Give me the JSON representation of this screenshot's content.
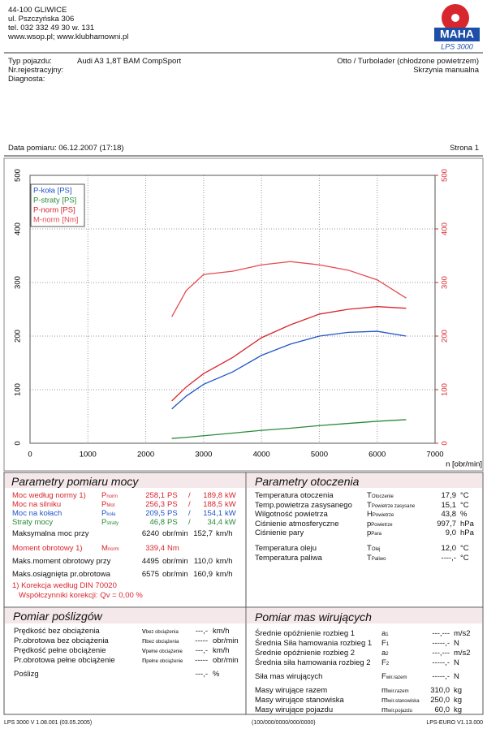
{
  "header": {
    "address": [
      "44-100 GLIWICE",
      "ul. Pszczyńska 306",
      "tel. 032 332 49 30 w. 131",
      "www.wsop.pl; www.klubhamowni.pl"
    ],
    "logo": "MAHA",
    "product": "LPS 3000"
  },
  "vehicle": {
    "labels": [
      "Typ pojazdu:",
      "Nr.rejestracyjny:",
      "Diagnosta:"
    ],
    "type": "Audi A3 1,8T BAM CompSport",
    "engine": "Otto / Turbolader (chłodzone powietrzem)",
    "gearbox": "Skrzynia manualna"
  },
  "measurement": {
    "date": "Data pomiaru: 06.12.2007 (17:18)",
    "page": "Strona 1"
  },
  "chart_data": {
    "type": "line",
    "xlabel": "n [obr/min]",
    "x": [
      2450,
      2700,
      3000,
      3500,
      4000,
      4500,
      5000,
      5500,
      6000,
      6500
    ],
    "xlim": [
      0,
      7000
    ],
    "xticks": [
      0,
      1000,
      2000,
      3000,
      4000,
      5000,
      6000,
      7000
    ],
    "ylim": [
      0,
      500
    ],
    "yticks": [
      0,
      100,
      200,
      300,
      400,
      500
    ],
    "y2lim": [
      0,
      500
    ],
    "y2ticks": [
      0,
      100,
      200,
      300,
      400,
      500
    ],
    "grid": true,
    "legend": "upper left",
    "series": [
      {
        "name": "P-koła [PS]",
        "color": "#2255c8",
        "values": [
          64,
          88,
          110,
          133,
          164,
          185,
          200,
          207,
          209,
          200
        ]
      },
      {
        "name": "P-straty [PS]",
        "color": "#2a8a3a",
        "values": [
          9,
          11,
          14,
          19,
          24,
          28,
          33,
          37,
          41,
          44
        ]
      },
      {
        "name": "P-norm [PS]",
        "color": "#d8262e",
        "values": [
          79,
          105,
          130,
          160,
          197,
          221,
          241,
          250,
          255,
          252
        ]
      },
      {
        "name": "M-norm [Nm]",
        "color": "#e8484e",
        "axis": "y2",
        "values": [
          236,
          285,
          315,
          321,
          333,
          339,
          333,
          323,
          305,
          271
        ]
      }
    ]
  },
  "power": {
    "title": "Parametry pomiaru mocy",
    "rows": [
      {
        "label": "Moc według normy 1)",
        "sym": "P",
        "sub": "norm",
        "value": "258,1",
        "unit": "PS",
        "sep": "/",
        "value2": "189,8",
        "unit2": "kW",
        "color": "#d8262e"
      },
      {
        "label": "Moc na silniku",
        "sym": "P",
        "sub": "Mot",
        "value": "256,3",
        "unit": "PS",
        "sep": "/",
        "value2": "188,5",
        "unit2": "kW",
        "color": "#d8262e"
      },
      {
        "label": "Moc na kołach",
        "sym": "P",
        "sub": "koła",
        "value": "209,5",
        "unit": "PS",
        "sep": "/",
        "value2": "154,1",
        "unit2": "kW",
        "color": "#2255c8"
      },
      {
        "label": "Straty mocy",
        "sym": "P",
        "sub": "straty",
        "value": "46,8",
        "unit": "PS",
        "sep": "/",
        "value2": "34,4",
        "unit2": "kW",
        "color": "#2a8a3a"
      },
      {
        "label": "Maksymalna moc przy",
        "value": "6240",
        "unit": "obr/min",
        "value2": "152,7",
        "unit2": "km/h",
        "color": "#111"
      },
      {
        "label": "Moment obrotowy 1)",
        "sym": "M",
        "sub": "norm",
        "value": "339,4",
        "unit": "Nm",
        "color": "#d8262e"
      },
      {
        "label": "Maks.moment obrotowy przy",
        "value": "4495",
        "unit": "obr/min",
        "value2": "110,0",
        "unit2": "km/h",
        "color": "#111"
      },
      {
        "label": "Maks.osiągnięta pr.obrotowa",
        "value": "6575",
        "unit": "obr/min",
        "value2": "160,9",
        "unit2": "km/h",
        "color": "#111"
      }
    ],
    "notes": [
      "1) Korekcja według DIN 70020",
      "Współczynniki korekcji: Qv = 0,00 %"
    ]
  },
  "ambient": {
    "title": "Parametry otoczenia",
    "rows": [
      {
        "label": "Temperatura otoczenia",
        "sym": "T",
        "sub": "Otoczenie",
        "value": "17,9",
        "unit": "°C"
      },
      {
        "label": "Temp.powietrza zasysanego",
        "sym": "T",
        "sub": "Powietrze zasysane",
        "value": "15,1",
        "unit": "°C"
      },
      {
        "label": "Wilgotność powietrza",
        "sym": "H",
        "sub": "Powietrze",
        "value": "43,8",
        "unit": "%"
      },
      {
        "label": "Ciśnienie atmosferyczne",
        "sym": "p",
        "sub": "Powietrze",
        "value": "997,7",
        "unit": "hPa"
      },
      {
        "label": "Ciśnienie pary",
        "sym": "p",
        "sub": "Para",
        "value": "9,0",
        "unit": "hPa"
      },
      {
        "label": "Temperatura oleju",
        "sym": "T",
        "sub": "Olej",
        "value": "12,0",
        "unit": "°C"
      },
      {
        "label": "Temperatura paliwa",
        "sym": "T",
        "sub": "Paliwo",
        "value": "----,-",
        "unit": "°C"
      }
    ]
  },
  "slip": {
    "title": "Pomiar poślizgów",
    "rows": [
      {
        "label": "Prędkość bez obciążenia",
        "sym": "v",
        "sub": "bez obciążenia",
        "value": "---,-",
        "unit": "km/h"
      },
      {
        "label": "Pr.obrotowa bez obciążenia",
        "sym": "n",
        "sub": "bez obciążenia",
        "value": "-----",
        "unit": "obr/min"
      },
      {
        "label": "Prędkość pełne obciążenie",
        "sym": "v",
        "sub": "pełne obciążenie",
        "value": "---,-",
        "unit": "km/h"
      },
      {
        "label": "Pr.obrotowa pełne obciążenie",
        "sym": "n",
        "sub": "pełne obciążenie",
        "value": "-----",
        "unit": "obr/min"
      },
      {
        "label": "Poślizg",
        "value": "---,-",
        "unit": "%"
      }
    ]
  },
  "masses": {
    "title": "Pomiar mas wirujących",
    "rows": [
      {
        "label": "Średnie opóźnienie rozbieg 1",
        "sym": "a",
        "sub": "1",
        "value": "---,---",
        "unit": "m/s2"
      },
      {
        "label": "Średnia Siła hamowania rozbieg 1",
        "sym": "F",
        "sub": "1",
        "value": "-----,-",
        "unit": "N"
      },
      {
        "label": "Średnie opóźnienie rozbieg 2",
        "sym": "a",
        "sub": "2",
        "value": "---,---",
        "unit": "m/s2"
      },
      {
        "label": "Średnia siła hamowania rozbieg 2",
        "sym": "F",
        "sub": "2",
        "value": "-----,-",
        "unit": "N"
      },
      {
        "label": "Siła mas wirujących",
        "sym": "F",
        "sub": "wir.razem",
        "value": "-----,-",
        "unit": "N"
      },
      {
        "label": "Masy wirujące razem",
        "sym": "m",
        "sub": "wir.razem",
        "value": "310,0",
        "unit": "kg"
      },
      {
        "label": "Masy wirujące stanowiska",
        "sym": "m",
        "sub": "wir.stanowiska",
        "value": "250,0",
        "unit": "kg"
      },
      {
        "label": "Masy wirujące pojazdu",
        "sym": "m",
        "sub": "wir.pojazdu",
        "value": "60,0",
        "unit": "kg"
      }
    ]
  },
  "footer": [
    "LPS 3000 V 1.08.001 (03.05.2005)",
    "(100/000/0000/000/0000)",
    "LPS-EURO V1.13.000"
  ]
}
